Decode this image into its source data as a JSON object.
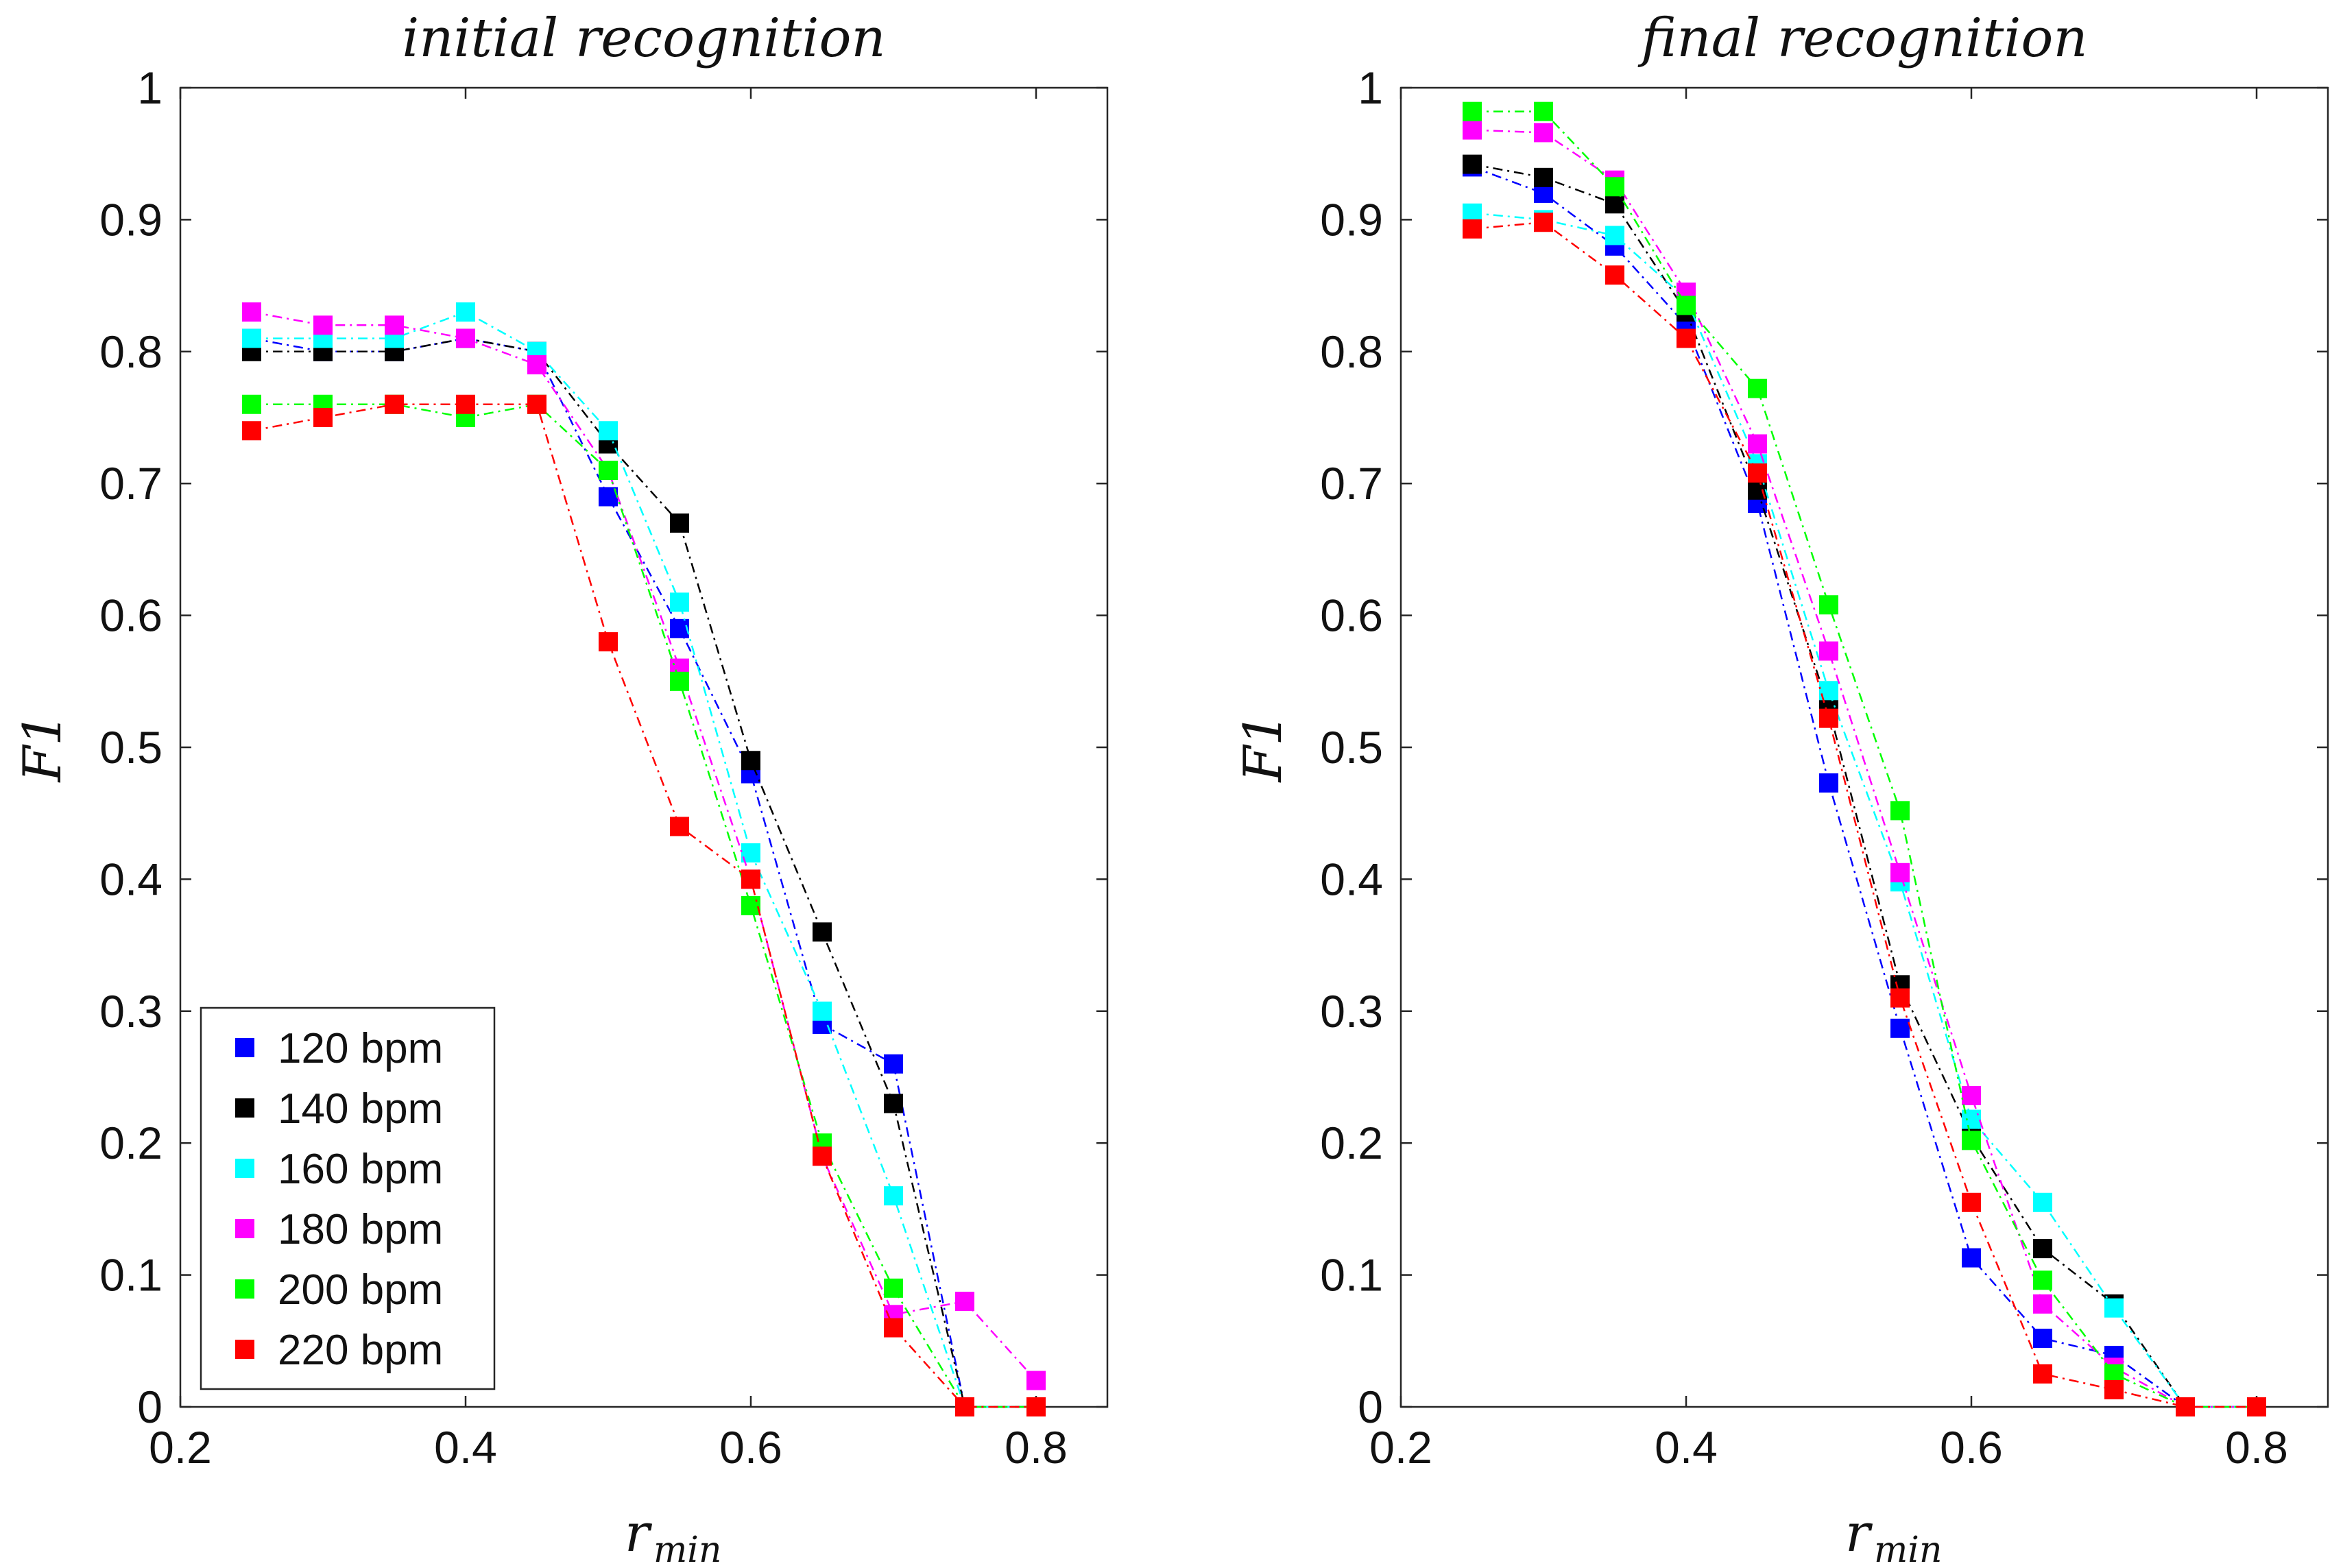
{
  "chart_data": [
    {
      "type": "line",
      "title": "initial recognition",
      "xlabel": "r",
      "xlabel_sub": "min",
      "ylabel": "F1",
      "xlim": [
        0.2,
        0.85
      ],
      "ylim": [
        0,
        1
      ],
      "xticks": [
        0.2,
        0.4,
        0.6,
        0.8
      ],
      "yticks": [
        0,
        0.1,
        0.2,
        0.3,
        0.4,
        0.5,
        0.6,
        0.7,
        0.8,
        0.9,
        1
      ],
      "legend": {
        "show": true,
        "placement": "bottom-left"
      },
      "series": [
        {
          "name": "120 bpm",
          "color": "#0000ff",
          "x": [
            0.25,
            0.3,
            0.35,
            0.4,
            0.45,
            0.5,
            0.55,
            0.6,
            0.65,
            0.7,
            0.75,
            0.8
          ],
          "y": [
            0.81,
            0.8,
            0.8,
            0.81,
            0.8,
            0.69,
            0.59,
            0.48,
            0.29,
            0.26,
            0,
            0
          ]
        },
        {
          "name": "140 bpm",
          "color": "#000000",
          "x": [
            0.25,
            0.3,
            0.35,
            0.4,
            0.45,
            0.5,
            0.55,
            0.6,
            0.65,
            0.7,
            0.75,
            0.8
          ],
          "y": [
            0.8,
            0.8,
            0.8,
            0.81,
            0.8,
            0.73,
            0.67,
            0.49,
            0.36,
            0.23,
            0,
            0
          ]
        },
        {
          "name": "160 bpm",
          "color": "#00ffff",
          "x": [
            0.25,
            0.3,
            0.35,
            0.4,
            0.45,
            0.5,
            0.55,
            0.6,
            0.65,
            0.7,
            0.75,
            0.8
          ],
          "y": [
            0.81,
            0.81,
            0.81,
            0.83,
            0.8,
            0.74,
            0.61,
            0.42,
            0.3,
            0.16,
            0,
            0
          ]
        },
        {
          "name": "180 bpm",
          "color": "#ff00ff",
          "x": [
            0.25,
            0.3,
            0.35,
            0.4,
            0.45,
            0.5,
            0.55,
            0.6,
            0.65,
            0.7,
            0.75,
            0.8
          ],
          "y": [
            0.83,
            0.82,
            0.82,
            0.81,
            0.79,
            0.71,
            0.56,
            0.4,
            0.19,
            0.07,
            0.08,
            0.02
          ]
        },
        {
          "name": "200 bpm",
          "color": "#00ff00",
          "x": [
            0.25,
            0.3,
            0.35,
            0.4,
            0.45,
            0.5,
            0.55,
            0.6,
            0.65,
            0.7,
            0.75,
            0.8
          ],
          "y": [
            0.76,
            0.76,
            0.76,
            0.75,
            0.76,
            0.71,
            0.55,
            0.38,
            0.2,
            0.09,
            0,
            0
          ]
        },
        {
          "name": "220 bpm",
          "color": "#ff0000",
          "x": [
            0.25,
            0.3,
            0.35,
            0.4,
            0.45,
            0.5,
            0.55,
            0.6,
            0.65,
            0.7,
            0.75,
            0.8
          ],
          "y": [
            0.74,
            0.75,
            0.76,
            0.76,
            0.76,
            0.58,
            0.44,
            0.4,
            0.19,
            0.06,
            0,
            0
          ]
        }
      ]
    },
    {
      "type": "line",
      "title": "final recognition",
      "xlabel": "r",
      "xlabel_sub": "min",
      "ylabel": "F1",
      "xlim": [
        0.2,
        0.85
      ],
      "ylim": [
        0,
        1
      ],
      "xticks": [
        0.2,
        0.4,
        0.6,
        0.8
      ],
      "yticks": [
        0,
        0.1,
        0.2,
        0.3,
        0.4,
        0.5,
        0.6,
        0.7,
        0.8,
        0.9,
        1
      ],
      "legend": {
        "show": false
      },
      "series": [
        {
          "name": "120 bpm",
          "color": "#0000ff",
          "x": [
            0.25,
            0.3,
            0.35,
            0.4,
            0.45,
            0.5,
            0.55,
            0.6,
            0.65,
            0.7,
            0.75,
            0.8
          ],
          "y": [
            0.94,
            0.92,
            0.88,
            0.82,
            0.685,
            0.473,
            0.287,
            0.113,
            0.052,
            0.039,
            0,
            0
          ]
        },
        {
          "name": "140 bpm",
          "color": "#000000",
          "x": [
            0.25,
            0.3,
            0.35,
            0.4,
            0.45,
            0.5,
            0.55,
            0.6,
            0.65,
            0.7,
            0.75,
            0.8
          ],
          "y": [
            0.942,
            0.932,
            0.912,
            0.83,
            0.695,
            0.53,
            0.32,
            0.205,
            0.12,
            0.078,
            0,
            0
          ]
        },
        {
          "name": "160 bpm",
          "color": "#00ffff",
          "x": [
            0.25,
            0.3,
            0.35,
            0.4,
            0.45,
            0.5,
            0.55,
            0.6,
            0.65,
            0.7,
            0.75,
            0.8
          ],
          "y": [
            0.905,
            0.9,
            0.888,
            0.84,
            0.715,
            0.543,
            0.398,
            0.218,
            0.155,
            0.075,
            0,
            0
          ]
        },
        {
          "name": "180 bpm",
          "color": "#ff00ff",
          "x": [
            0.25,
            0.3,
            0.35,
            0.4,
            0.45,
            0.5,
            0.55,
            0.6,
            0.65,
            0.7,
            0.75,
            0.8
          ],
          "y": [
            0.968,
            0.966,
            0.93,
            0.845,
            0.73,
            0.573,
            0.405,
            0.236,
            0.078,
            0.03,
            0,
            0
          ]
        },
        {
          "name": "200 bpm",
          "color": "#00ff00",
          "x": [
            0.25,
            0.3,
            0.35,
            0.4,
            0.45,
            0.5,
            0.55,
            0.6,
            0.65,
            0.7,
            0.75,
            0.8
          ],
          "y": [
            0.982,
            0.982,
            0.925,
            0.835,
            0.772,
            0.608,
            0.452,
            0.202,
            0.096,
            0.025,
            0,
            0
          ]
        },
        {
          "name": "220 bpm",
          "color": "#ff0000",
          "x": [
            0.25,
            0.3,
            0.35,
            0.4,
            0.45,
            0.5,
            0.55,
            0.6,
            0.65,
            0.7,
            0.75,
            0.8
          ],
          "y": [
            0.893,
            0.898,
            0.858,
            0.81,
            0.708,
            0.522,
            0.31,
            0.155,
            0.025,
            0.013,
            0,
            0
          ]
        }
      ]
    }
  ]
}
